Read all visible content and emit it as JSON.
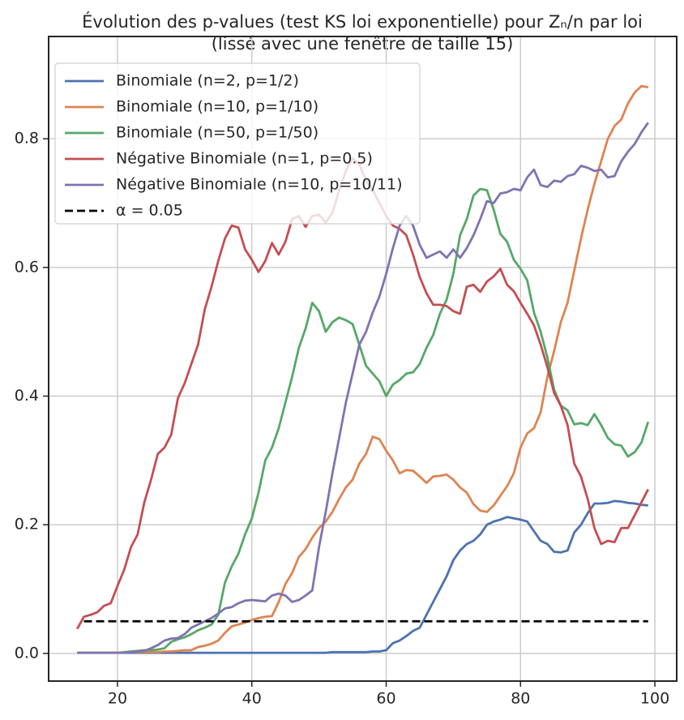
{
  "chart_data": {
    "type": "line",
    "title": "Évolution des p-values (test KS loi exponentielle) pour Zₙ/n par loi",
    "subtitle": "(lissé avec une fenêtre de taille 15)",
    "x": [
      14,
      15,
      16,
      17,
      18,
      19,
      20,
      21,
      22,
      23,
      24,
      25,
      26,
      27,
      28,
      29,
      30,
      31,
      32,
      33,
      34,
      35,
      36,
      37,
      38,
      39,
      40,
      41,
      42,
      43,
      44,
      45,
      46,
      47,
      48,
      49,
      50,
      51,
      52,
      53,
      54,
      55,
      56,
      57,
      58,
      59,
      60,
      61,
      62,
      63,
      64,
      65,
      66,
      67,
      68,
      69,
      70,
      71,
      72,
      73,
      74,
      75,
      76,
      77,
      78,
      79,
      80,
      81,
      82,
      83,
      84,
      85,
      86,
      87,
      88,
      89,
      90,
      91,
      92,
      93,
      94,
      95,
      96,
      97,
      98,
      99
    ],
    "series": [
      {
        "name": "Binomiale (n=2, p=1/2)",
        "color": "#4c72b0",
        "values": [
          0.001,
          0.001,
          0.001,
          0.001,
          0.001,
          0.001,
          0.001,
          0.001,
          0.001,
          0.001,
          0.001,
          0.001,
          0.001,
          0.001,
          0.001,
          0.001,
          0.001,
          0.001,
          0.001,
          0.001,
          0.001,
          0.001,
          0.001,
          0.001,
          0.001,
          0.001,
          0.001,
          0.001,
          0.001,
          0.001,
          0.001,
          0.001,
          0.001,
          0.001,
          0.001,
          0.001,
          0.001,
          0.001,
          0.002,
          0.002,
          0.002,
          0.002,
          0.002,
          0.002,
          0.003,
          0.003,
          0.005,
          0.016,
          0.02,
          0.027,
          0.035,
          0.04,
          0.06,
          0.08,
          0.1,
          0.12,
          0.145,
          0.16,
          0.17,
          0.175,
          0.185,
          0.2,
          0.205,
          0.208,
          0.212,
          0.21,
          0.208,
          0.205,
          0.19,
          0.175,
          0.17,
          0.158,
          0.157,
          0.16,
          0.188,
          0.2,
          0.218,
          0.233,
          0.233,
          0.234,
          0.237,
          0.236,
          0.234,
          0.233,
          0.231,
          0.23
        ]
      },
      {
        "name": "Binomiale (n=10, p=1/10)",
        "color": "#dd8452",
        "values": [
          0.001,
          0.001,
          0.001,
          0.001,
          0.001,
          0.001,
          0.001,
          0.001,
          0.002,
          0.002,
          0.002,
          0.002,
          0.002,
          0.003,
          0.003,
          0.004,
          0.005,
          0.005,
          0.01,
          0.012,
          0.015,
          0.02,
          0.032,
          0.042,
          0.045,
          0.048,
          0.052,
          0.055,
          0.057,
          0.058,
          0.08,
          0.108,
          0.125,
          0.15,
          0.162,
          0.18,
          0.195,
          0.205,
          0.22,
          0.24,
          0.258,
          0.27,
          0.295,
          0.31,
          0.337,
          0.333,
          0.315,
          0.3,
          0.28,
          0.285,
          0.284,
          0.275,
          0.265,
          0.275,
          0.276,
          0.278,
          0.27,
          0.258,
          0.25,
          0.232,
          0.222,
          0.22,
          0.23,
          0.245,
          0.26,
          0.28,
          0.32,
          0.342,
          0.35,
          0.375,
          0.43,
          0.47,
          0.515,
          0.545,
          0.595,
          0.645,
          0.69,
          0.73,
          0.765,
          0.8,
          0.82,
          0.83,
          0.855,
          0.872,
          0.882,
          0.88
        ]
      },
      {
        "name": "Binomiale (n=50, p=1/50)",
        "color": "#55a868",
        "values": [
          0.001,
          0.001,
          0.001,
          0.001,
          0.001,
          0.001,
          0.001,
          0.002,
          0.003,
          0.004,
          0.005,
          0.005,
          0.006,
          0.008,
          0.018,
          0.022,
          0.025,
          0.03,
          0.036,
          0.04,
          0.045,
          0.06,
          0.11,
          0.135,
          0.155,
          0.185,
          0.21,
          0.25,
          0.3,
          0.32,
          0.35,
          0.39,
          0.43,
          0.475,
          0.505,
          0.545,
          0.532,
          0.5,
          0.515,
          0.522,
          0.518,
          0.512,
          0.48,
          0.447,
          0.435,
          0.423,
          0.4,
          0.418,
          0.425,
          0.435,
          0.437,
          0.45,
          0.475,
          0.495,
          0.528,
          0.55,
          0.59,
          0.65,
          0.675,
          0.712,
          0.722,
          0.72,
          0.69,
          0.652,
          0.64,
          0.612,
          0.598,
          0.58,
          0.53,
          0.5,
          0.46,
          0.41,
          0.385,
          0.378,
          0.356,
          0.358,
          0.355,
          0.372,
          0.355,
          0.335,
          0.325,
          0.323,
          0.306,
          0.313,
          0.328,
          0.36
        ]
      },
      {
        "name": "Négative Binomiale (n=1, p=0.5)",
        "color": "#c44e52",
        "values": [
          0.038,
          0.057,
          0.06,
          0.064,
          0.074,
          0.078,
          0.105,
          0.13,
          0.165,
          0.185,
          0.235,
          0.27,
          0.31,
          0.32,
          0.34,
          0.397,
          0.42,
          0.45,
          0.48,
          0.535,
          0.57,
          0.61,
          0.645,
          0.665,
          0.662,
          0.628,
          0.612,
          0.593,
          0.61,
          0.638,
          0.62,
          0.64,
          0.675,
          0.68,
          0.663,
          0.68,
          0.682,
          0.67,
          0.685,
          0.72,
          0.75,
          0.77,
          0.76,
          0.735,
          0.72,
          0.7,
          0.68,
          0.665,
          0.66,
          0.65,
          0.62,
          0.585,
          0.56,
          0.542,
          0.542,
          0.54,
          0.532,
          0.528,
          0.57,
          0.573,
          0.562,
          0.578,
          0.586,
          0.598,
          0.573,
          0.563,
          0.545,
          0.528,
          0.51,
          0.48,
          0.445,
          0.405,
          0.385,
          0.355,
          0.295,
          0.275,
          0.24,
          0.195,
          0.17,
          0.175,
          0.173,
          0.195,
          0.195,
          0.215,
          0.235,
          0.255
        ]
      },
      {
        "name": "Négative Binomiale (n=10, p=10/11)",
        "color": "#8172b3",
        "values": [
          0.001,
          0.001,
          0.001,
          0.001,
          0.001,
          0.001,
          0.001,
          0.001,
          0.002,
          0.003,
          0.004,
          0.008,
          0.013,
          0.02,
          0.023,
          0.024,
          0.03,
          0.04,
          0.045,
          0.05,
          0.055,
          0.062,
          0.07,
          0.072,
          0.078,
          0.082,
          0.083,
          0.082,
          0.081,
          0.09,
          0.093,
          0.09,
          0.08,
          0.083,
          0.09,
          0.098,
          0.165,
          0.22,
          0.28,
          0.335,
          0.39,
          0.435,
          0.48,
          0.5,
          0.53,
          0.555,
          0.59,
          0.63,
          0.665,
          0.68,
          0.665,
          0.635,
          0.615,
          0.62,
          0.625,
          0.615,
          0.628,
          0.615,
          0.63,
          0.65,
          0.675,
          0.703,
          0.7,
          0.715,
          0.717,
          0.722,
          0.72,
          0.74,
          0.752,
          0.728,
          0.725,
          0.735,
          0.733,
          0.742,
          0.745,
          0.758,
          0.755,
          0.75,
          0.752,
          0.74,
          0.742,
          0.765,
          0.78,
          0.792,
          0.81,
          0.825
        ]
      }
    ],
    "threshold": {
      "name": "α = 0.05",
      "value": 0.05,
      "x": [
        15,
        99
      ],
      "color": "#000000"
    },
    "xlim": [
      9.75,
      103.25
    ],
    "ylim": [
      -0.043,
      0.959
    ],
    "xticks": [
      20,
      40,
      60,
      80,
      100
    ],
    "yticks": [
      {
        "value": 0,
        "label": "0.0"
      },
      0.2,
      0.4,
      0.6,
      0.8
    ],
    "grid": true,
    "legend": "upper left"
  }
}
